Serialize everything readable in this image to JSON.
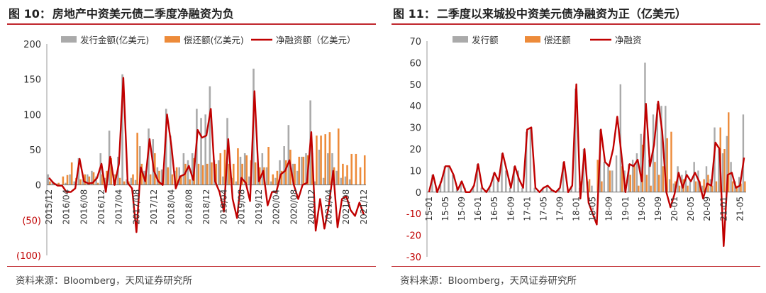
{
  "panels": [
    {
      "title_num": "图 10：",
      "title": "房地产中资美元债二季度净融资为负",
      "source": "资料来源：Bloomberg，天风证券研究所"
    },
    {
      "title_num": "图 11：",
      "title": "二季度以来城投中资美元债净融资为正（亿美元）",
      "source": "资料来源：Bloomberg，天风证券研究所"
    }
  ],
  "colors": {
    "issuance": "#aaaaaa",
    "repayment": "#ed8b3a",
    "net": "#c00000",
    "negative_tick": "#c00000",
    "rule": "#c0272d"
  },
  "chart_data": [
    {
      "type": "bar",
      "legend": [
        "发行金额(亿美元)",
        "偿还额(亿美元)",
        "净融资额（亿美元）"
      ],
      "legend_position": "top",
      "y_ticks": [
        "200",
        "150",
        "100",
        "50",
        "0",
        "(50)",
        "(100)"
      ],
      "ylim": [
        -100,
        200
      ],
      "x_tick_labels": [
        "2015/12",
        "2016/04",
        "2016/08",
        "2016/12",
        "2017/04",
        "2017/08",
        "2017/12",
        "2018/04",
        "2018/08",
        "2018/12",
        "2019/04",
        "2019/08",
        "2019/12",
        "2020/04",
        "2020/08",
        "2020/12",
        "2021/04",
        "2021/08",
        "2021/12"
      ],
      "categories": [
        "2015/12",
        "2016/01",
        "2016/02",
        "2016/03",
        "2016/04",
        "2016/05",
        "2016/06",
        "2016/07",
        "2016/08",
        "2016/09",
        "2016/10",
        "2016/11",
        "2016/12",
        "2017/01",
        "2017/02",
        "2017/03",
        "2017/04",
        "2017/05",
        "2017/06",
        "2017/07",
        "2017/08",
        "2017/09",
        "2017/10",
        "2017/11",
        "2017/12",
        "2018/01",
        "2018/02",
        "2018/03",
        "2018/04",
        "2018/05",
        "2018/06",
        "2018/07",
        "2018/08",
        "2018/09",
        "2018/10",
        "2018/11",
        "2018/12",
        "2019/01",
        "2019/02",
        "2019/03",
        "2019/04",
        "2019/05",
        "2019/06",
        "2019/07",
        "2019/08",
        "2019/09",
        "2019/10",
        "2019/11",
        "2019/12",
        "2020/01",
        "2020/02",
        "2020/03",
        "2020/04",
        "2020/05",
        "2020/06",
        "2020/07",
        "2020/08",
        "2020/09",
        "2020/10",
        "2020/11",
        "2020/12",
        "2021/01",
        "2021/02",
        "2021/03",
        "2021/04",
        "2021/05",
        "2021/06",
        "2021/07",
        "2021/08",
        "2021/09",
        "2021/10",
        "2021/11",
        "2021/12"
      ],
      "series": [
        {
          "name": "发行金额(亿美元)",
          "type": "bar",
          "values": [
            15,
            5,
            2,
            0,
            3,
            15,
            5,
            38,
            8,
            15,
            20,
            12,
            45,
            10,
            77,
            15,
            40,
            157,
            8,
            10,
            7,
            55,
            20,
            80,
            65,
            25,
            22,
            108,
            70,
            20,
            25,
            45,
            35,
            45,
            108,
            95,
            100,
            140,
            35,
            35,
            12,
            95,
            10,
            5,
            40,
            45,
            12,
            165,
            30,
            45,
            25,
            5,
            10,
            35,
            55,
            85,
            30,
            20,
            40,
            45,
            120,
            5,
            50,
            10,
            45,
            45,
            20,
            10,
            12,
            8,
            0,
            0,
            0
          ]
        },
        {
          "name": "偿还额(亿美元)",
          "type": "bar",
          "values": [
            5,
            2,
            3,
            12,
            14,
            32,
            10,
            8,
            15,
            12,
            18,
            3,
            15,
            20,
            38,
            15,
            10,
            5,
            5,
            15,
            74,
            30,
            15,
            15,
            45,
            20,
            22,
            25,
            15,
            25,
            12,
            30,
            8,
            38,
            30,
            28,
            30,
            32,
            30,
            45,
            50,
            30,
            30,
            52,
            30,
            42,
            35,
            32,
            25,
            25,
            54,
            15,
            20,
            20,
            35,
            50,
            30,
            40,
            40,
            42,
            45,
            70,
            70,
            72,
            75,
            25,
            80,
            30,
            28,
            44,
            44,
            25,
            42
          ]
        },
        {
          "name": "净融资额（亿美元）",
          "type": "line",
          "values": [
            10,
            3,
            -1,
            -1,
            -10,
            -10,
            -5,
            37,
            5,
            2,
            3,
            10,
            30,
            -10,
            40,
            0,
            30,
            152,
            3,
            -5,
            -67,
            25,
            5,
            65,
            20,
            5,
            0,
            100,
            55,
            -5,
            12,
            15,
            27,
            7,
            78,
            67,
            70,
            108,
            5,
            -10,
            -38,
            65,
            -20,
            -47,
            10,
            3,
            -23,
            133,
            5,
            20,
            -29,
            -10,
            -10,
            15,
            20,
            35,
            0,
            -20,
            0,
            3,
            75,
            -65,
            -20,
            -62,
            -30,
            20,
            -60,
            -20,
            -16,
            -36,
            -44,
            -25,
            -42
          ]
        }
      ]
    },
    {
      "type": "bar",
      "legend": [
        "发行额",
        "偿还额",
        "净融资"
      ],
      "legend_position": "top",
      "y_ticks": [
        "70",
        "60",
        "50",
        "40",
        "30",
        "20",
        "10",
        "0",
        "-10",
        "-20",
        "-30"
      ],
      "ylim": [
        -30,
        70
      ],
      "x_tick_labels": [
        "15-01",
        "15-05",
        "15-09",
        "16-01",
        "16-05",
        "16-09",
        "17-01",
        "17-05",
        "17-09",
        "18-01",
        "18-05",
        "18-09",
        "19-01",
        "19-05",
        "19-09",
        "20-01",
        "20-05",
        "20-09",
        "21-01",
        "21-05"
      ],
      "categories": [
        "15-01",
        "15-02",
        "15-03",
        "15-04",
        "15-05",
        "15-06",
        "15-07",
        "15-08",
        "15-09",
        "15-10",
        "15-11",
        "15-12",
        "16-01",
        "16-02",
        "16-03",
        "16-04",
        "16-05",
        "16-06",
        "16-07",
        "16-08",
        "16-09",
        "16-10",
        "16-11",
        "16-12",
        "17-01",
        "17-02",
        "17-03",
        "17-04",
        "17-05",
        "17-06",
        "17-07",
        "17-08",
        "17-09",
        "17-10",
        "17-11",
        "17-12",
        "18-01",
        "18-02",
        "18-03",
        "18-04",
        "18-05",
        "18-06",
        "18-07",
        "18-08",
        "18-09",
        "18-10",
        "18-11",
        "18-12",
        "19-01",
        "19-02",
        "19-03",
        "19-04",
        "19-05",
        "19-06",
        "19-07",
        "19-08",
        "19-09",
        "19-10",
        "19-11",
        "19-12",
        "20-01",
        "20-02",
        "20-03",
        "20-04",
        "20-05",
        "20-06",
        "20-07",
        "20-08",
        "20-09",
        "20-10",
        "20-11",
        "20-12",
        "21-01",
        "21-02",
        "21-03",
        "21-04",
        "21-05",
        "21-06"
      ],
      "series": [
        {
          "name": "发行额",
          "type": "bar",
          "values": [
            0,
            8,
            2,
            5,
            12,
            12,
            8,
            2,
            5,
            2,
            0,
            3,
            13,
            2,
            1,
            3,
            9,
            5,
            18,
            10,
            2,
            12,
            10,
            2,
            28,
            30,
            2,
            0,
            2,
            3,
            1,
            0,
            2,
            14,
            0,
            3,
            48,
            2,
            20,
            5,
            3,
            0,
            29,
            14,
            12,
            10,
            17,
            50,
            10,
            13,
            15,
            18,
            27,
            60,
            15,
            36,
            41,
            40,
            40,
            6,
            4,
            12,
            8,
            10,
            5,
            14,
            10,
            3,
            12,
            6,
            30,
            20,
            18,
            26,
            14,
            5,
            7,
            36
          ]
        },
        {
          "name": "偿还额",
          "type": "bar",
          "values": [
            0,
            0,
            0,
            0,
            0,
            0,
            0,
            0,
            0,
            0,
            0,
            0,
            0,
            0,
            0,
            0,
            0,
            0,
            0,
            0,
            0,
            0,
            0,
            0,
            0,
            0,
            0,
            0,
            0,
            0,
            0,
            0,
            0,
            0,
            0,
            0,
            0,
            5,
            0,
            6,
            0,
            15,
            5,
            0,
            10,
            0,
            0,
            12,
            0,
            8,
            12,
            3,
            22,
            8,
            3,
            14,
            8,
            12,
            25,
            28,
            5,
            3,
            6,
            3,
            0,
            5,
            5,
            6,
            8,
            3,
            5,
            30,
            20,
            37,
            5,
            3,
            4,
            5
          ]
        },
        {
          "name": "净融资",
          "type": "line",
          "values": [
            0,
            8,
            0,
            5,
            12,
            12,
            8,
            1,
            5,
            0,
            0,
            3,
            13,
            2,
            0,
            3,
            9,
            5,
            18,
            10,
            2,
            12,
            6,
            2,
            29,
            30,
            2,
            0,
            2,
            3,
            1,
            0,
            2,
            14,
            0,
            3,
            50,
            -3,
            20,
            -5,
            -10,
            -15,
            29,
            14,
            12,
            20,
            35,
            18,
            0,
            13,
            12,
            15,
            5,
            41,
            12,
            22,
            42,
            28,
            0,
            -7,
            -1,
            9,
            2,
            8,
            5,
            9,
            5,
            -3,
            4,
            3,
            23,
            20,
            -25,
            8,
            9,
            2,
            3,
            16
          ]
        }
      ]
    }
  ]
}
